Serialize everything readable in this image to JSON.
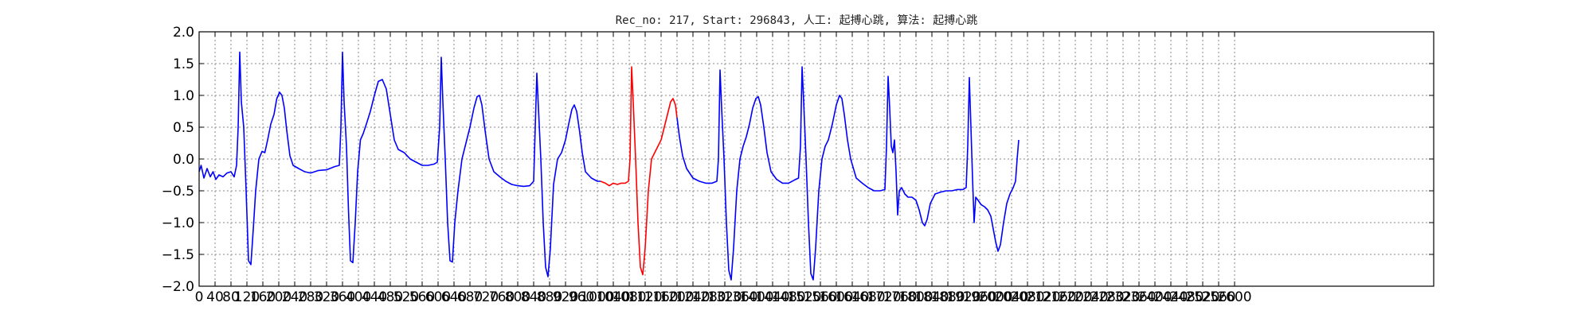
{
  "chart_data": {
    "type": "line",
    "title": "Rec_no: 217, Start: 296843, 人工: 起搏心跳, 算法: 起搏心跳",
    "xlabel": "",
    "ylabel": "",
    "xlim": [
      0,
      3100
    ],
    "ylim": [
      -2.0,
      2.0
    ],
    "grid": true,
    "x_ticks": [
      0,
      40,
      80,
      120,
      160,
      200,
      240,
      280,
      320,
      360,
      400,
      440,
      480,
      520,
      560,
      600,
      640,
      680,
      720,
      760,
      800,
      840,
      880,
      920,
      960,
      1000,
      1040,
      1080,
      1120,
      1160,
      1200,
      1240,
      1280,
      1320,
      1360,
      1400,
      1440,
      1480,
      1520,
      1560,
      1600,
      1640,
      1680,
      1720,
      1760,
      1800,
      1840,
      1880,
      1920,
      1960,
      2000,
      2040,
      2080,
      2120,
      2160,
      2200,
      2240,
      2280,
      2320,
      2360,
      2400,
      2440,
      2480,
      2520,
      2560,
      2600
    ],
    "x_tick_labels": [
      "0",
      "40",
      "80",
      "120",
      "160",
      "200",
      "240",
      "280",
      "320",
      "360",
      "400",
      "440",
      "480",
      "520",
      "560",
      "600",
      "640",
      "680",
      "720",
      "760",
      "800",
      "840",
      "880",
      "920",
      "960",
      "1000",
      "1040",
      "1080",
      "1120",
      "1160",
      "1200",
      "1240",
      "1280",
      "1320",
      "1360",
      "1400",
      "1440",
      "1480",
      "1520",
      "1560",
      "1600",
      "1640",
      "1680",
      "1720",
      "1760",
      "1800",
      "1840",
      "1880",
      "1920",
      "1960",
      "2000",
      "2040",
      "2080",
      "2120",
      "2160",
      "2200",
      "2240",
      "2280",
      "2320",
      "2360",
      "2400",
      "2440",
      "2480",
      "2520",
      "2560",
      "2600"
    ],
    "y_ticks": [
      2.0,
      1.5,
      1.0,
      0.5,
      0.0,
      -0.5,
      -1.0,
      -1.5,
      -2.0
    ],
    "y_tick_labels": [
      "2.0",
      "1.5",
      "1.0",
      "0.5",
      "0.0",
      "−0.5",
      "−1.0",
      "−1.5",
      "−2.0"
    ],
    "series": [
      {
        "color": "#0000ff",
        "points": [
          [
            0,
            -0.2
          ],
          [
            5,
            -0.1
          ],
          [
            12,
            -0.3
          ],
          [
            20,
            -0.15
          ],
          [
            28,
            -0.28
          ],
          [
            35,
            -0.2
          ],
          [
            42,
            -0.32
          ],
          [
            50,
            -0.25
          ],
          [
            60,
            -0.28
          ],
          [
            70,
            -0.22
          ],
          [
            80,
            -0.2
          ],
          [
            88,
            -0.28
          ],
          [
            94,
            -0.1
          ],
          [
            98,
            0.5
          ],
          [
            102,
            1.68
          ],
          [
            106,
            0.9
          ],
          [
            112,
            0.5
          ],
          [
            118,
            -0.5
          ],
          [
            124,
            -1.6
          ],
          [
            130,
            -1.66
          ],
          [
            136,
            -1.1
          ],
          [
            142,
            -0.5
          ],
          [
            150,
            0.0
          ],
          [
            158,
            0.12
          ],
          [
            165,
            0.1
          ],
          [
            172,
            0.3
          ],
          [
            180,
            0.55
          ],
          [
            188,
            0.7
          ],
          [
            195,
            0.95
          ],
          [
            202,
            1.05
          ],
          [
            208,
            1.0
          ],
          [
            214,
            0.8
          ],
          [
            220,
            0.45
          ],
          [
            228,
            0.05
          ],
          [
            236,
            -0.1
          ],
          [
            250,
            -0.15
          ],
          [
            265,
            -0.2
          ],
          [
            280,
            -0.22
          ],
          [
            300,
            -0.18
          ],
          [
            320,
            -0.17
          ],
          [
            340,
            -0.12
          ],
          [
            352,
            -0.1
          ],
          [
            356,
            0.5
          ],
          [
            360,
            1.68
          ],
          [
            364,
            0.9
          ],
          [
            370,
            0.2
          ],
          [
            375,
            -0.8
          ],
          [
            380,
            -1.6
          ],
          [
            386,
            -1.63
          ],
          [
            392,
            -1.0
          ],
          [
            398,
            -0.2
          ],
          [
            405,
            0.3
          ],
          [
            412,
            0.4
          ],
          [
            420,
            0.55
          ],
          [
            430,
            0.75
          ],
          [
            440,
            1.0
          ],
          [
            450,
            1.22
          ],
          [
            460,
            1.25
          ],
          [
            470,
            1.1
          ],
          [
            480,
            0.7
          ],
          [
            490,
            0.3
          ],
          [
            500,
            0.15
          ],
          [
            515,
            0.1
          ],
          [
            530,
            0.0
          ],
          [
            545,
            -0.05
          ],
          [
            560,
            -0.1
          ],
          [
            575,
            -0.1
          ],
          [
            590,
            -0.08
          ],
          [
            598,
            -0.05
          ],
          [
            604,
            0.5
          ],
          [
            608,
            1.6
          ],
          [
            612,
            0.9
          ],
          [
            618,
            0.0
          ],
          [
            624,
            -1.0
          ],
          [
            630,
            -1.6
          ],
          [
            636,
            -1.62
          ],
          [
            642,
            -1.0
          ],
          [
            650,
            -0.5
          ],
          [
            660,
            0.0
          ],
          [
            670,
            0.25
          ],
          [
            680,
            0.5
          ],
          [
            690,
            0.8
          ],
          [
            698,
            0.98
          ],
          [
            704,
            1.0
          ],
          [
            710,
            0.85
          ],
          [
            718,
            0.45
          ],
          [
            728,
            0.0
          ],
          [
            740,
            -0.2
          ],
          [
            755,
            -0.28
          ],
          [
            770,
            -0.35
          ],
          [
            785,
            -0.4
          ],
          [
            800,
            -0.42
          ],
          [
            815,
            -0.43
          ],
          [
            830,
            -0.42
          ],
          [
            840,
            -0.35
          ],
          [
            844,
            0.5
          ],
          [
            848,
            1.35
          ],
          [
            852,
            0.8
          ],
          [
            858,
            0.0
          ],
          [
            864,
            -1.0
          ],
          [
            870,
            -1.7
          ],
          [
            876,
            -1.85
          ],
          [
            882,
            -1.4
          ],
          [
            890,
            -0.4
          ],
          [
            900,
            0.0
          ],
          [
            910,
            0.1
          ],
          [
            920,
            0.3
          ],
          [
            928,
            0.55
          ],
          [
            936,
            0.78
          ],
          [
            942,
            0.85
          ],
          [
            948,
            0.75
          ],
          [
            955,
            0.45
          ],
          [
            962,
            0.1
          ],
          [
            970,
            -0.2
          ],
          [
            985,
            -0.3
          ],
          [
            1000,
            -0.35
          ],
          [
            1008,
            -0.35
          ]
        ]
      },
      {
        "color": "#ff0000",
        "points": [
          [
            1008,
            -0.35
          ],
          [
            1020,
            -0.38
          ],
          [
            1030,
            -0.42
          ],
          [
            1040,
            -0.38
          ],
          [
            1050,
            -0.4
          ],
          [
            1060,
            -0.38
          ],
          [
            1070,
            -0.38
          ],
          [
            1078,
            -0.35
          ],
          [
            1082,
            0.0
          ],
          [
            1086,
            1.45
          ],
          [
            1090,
            0.9
          ],
          [
            1096,
            0.0
          ],
          [
            1102,
            -1.0
          ],
          [
            1108,
            -1.7
          ],
          [
            1114,
            -1.82
          ],
          [
            1120,
            -1.4
          ],
          [
            1128,
            -0.5
          ],
          [
            1136,
            0.0
          ],
          [
            1144,
            0.1
          ],
          [
            1152,
            0.2
          ],
          [
            1160,
            0.3
          ],
          [
            1168,
            0.5
          ],
          [
            1176,
            0.7
          ],
          [
            1184,
            0.9
          ],
          [
            1190,
            0.95
          ],
          [
            1196,
            0.85
          ],
          [
            1200,
            0.65
          ]
        ]
      },
      {
        "color": "#0000ff",
        "points": [
          [
            1200,
            0.65
          ],
          [
            1206,
            0.35
          ],
          [
            1214,
            0.05
          ],
          [
            1224,
            -0.15
          ],
          [
            1240,
            -0.3
          ],
          [
            1256,
            -0.35
          ],
          [
            1272,
            -0.38
          ],
          [
            1288,
            -0.38
          ],
          [
            1300,
            -0.35
          ],
          [
            1304,
            0.0
          ],
          [
            1308,
            1.4
          ],
          [
            1312,
            0.8
          ],
          [
            1318,
            0.0
          ],
          [
            1324,
            -1.0
          ],
          [
            1330,
            -1.75
          ],
          [
            1336,
            -1.9
          ],
          [
            1342,
            -1.4
          ],
          [
            1350,
            -0.5
          ],
          [
            1358,
            0.0
          ],
          [
            1366,
            0.2
          ],
          [
            1374,
            0.35
          ],
          [
            1382,
            0.55
          ],
          [
            1390,
            0.8
          ],
          [
            1398,
            0.95
          ],
          [
            1404,
            0.98
          ],
          [
            1410,
            0.85
          ],
          [
            1418,
            0.5
          ],
          [
            1426,
            0.1
          ],
          [
            1436,
            -0.2
          ],
          [
            1450,
            -0.32
          ],
          [
            1465,
            -0.38
          ],
          [
            1480,
            -0.38
          ],
          [
            1495,
            -0.33
          ],
          [
            1505,
            -0.3
          ],
          [
            1510,
            0.2
          ],
          [
            1514,
            1.45
          ],
          [
            1518,
            0.9
          ],
          [
            1524,
            0.0
          ],
          [
            1530,
            -1.0
          ],
          [
            1536,
            -1.8
          ],
          [
            1542,
            -1.9
          ],
          [
            1548,
            -1.4
          ],
          [
            1556,
            -0.5
          ],
          [
            1564,
            0.0
          ],
          [
            1572,
            0.2
          ],
          [
            1580,
            0.3
          ],
          [
            1590,
            0.55
          ],
          [
            1600,
            0.85
          ],
          [
            1608,
            1.0
          ],
          [
            1614,
            0.95
          ],
          [
            1620,
            0.7
          ],
          [
            1628,
            0.3
          ],
          [
            1636,
            0.0
          ],
          [
            1650,
            -0.3
          ],
          [
            1665,
            -0.38
          ],
          [
            1680,
            -0.45
          ],
          [
            1695,
            -0.5
          ],
          [
            1710,
            -0.5
          ],
          [
            1722,
            -0.48
          ],
          [
            1726,
            0.2
          ],
          [
            1730,
            1.3
          ],
          [
            1734,
            0.8
          ],
          [
            1738,
            0.2
          ],
          [
            1742,
            0.1
          ],
          [
            1746,
            0.3
          ],
          [
            1750,
            -0.2
          ],
          [
            1754,
            -0.88
          ],
          [
            1758,
            -0.5
          ],
          [
            1764,
            -0.45
          ],
          [
            1772,
            -0.55
          ],
          [
            1780,
            -0.6
          ],
          [
            1790,
            -0.6
          ],
          [
            1800,
            -0.65
          ],
          [
            1808,
            -0.8
          ],
          [
            1816,
            -1.0
          ],
          [
            1822,
            -1.05
          ],
          [
            1828,
            -0.95
          ],
          [
            1836,
            -0.7
          ],
          [
            1848,
            -0.55
          ],
          [
            1862,
            -0.52
          ],
          [
            1876,
            -0.5
          ],
          [
            1890,
            -0.5
          ],
          [
            1904,
            -0.48
          ],
          [
            1918,
            -0.48
          ],
          [
            1926,
            -0.45
          ],
          [
            1930,
            0.2
          ],
          [
            1934,
            1.28
          ],
          [
            1938,
            0.5
          ],
          [
            1942,
            -0.3
          ],
          [
            1946,
            -1.0
          ],
          [
            1950,
            -0.6
          ],
          [
            1956,
            -0.65
          ],
          [
            1964,
            -0.72
          ],
          [
            1972,
            -0.75
          ],
          [
            1980,
            -0.8
          ],
          [
            1988,
            -0.9
          ],
          [
            1994,
            -1.1
          ],
          [
            2000,
            -1.3
          ],
          [
            2006,
            -1.45
          ],
          [
            2012,
            -1.35
          ],
          [
            2020,
            -1.0
          ],
          [
            2028,
            -0.7
          ],
          [
            2036,
            -0.55
          ],
          [
            2044,
            -0.45
          ],
          [
            2050,
            -0.35
          ],
          [
            2054,
            0.0
          ],
          [
            2058,
            0.3
          ]
        ]
      }
    ]
  }
}
